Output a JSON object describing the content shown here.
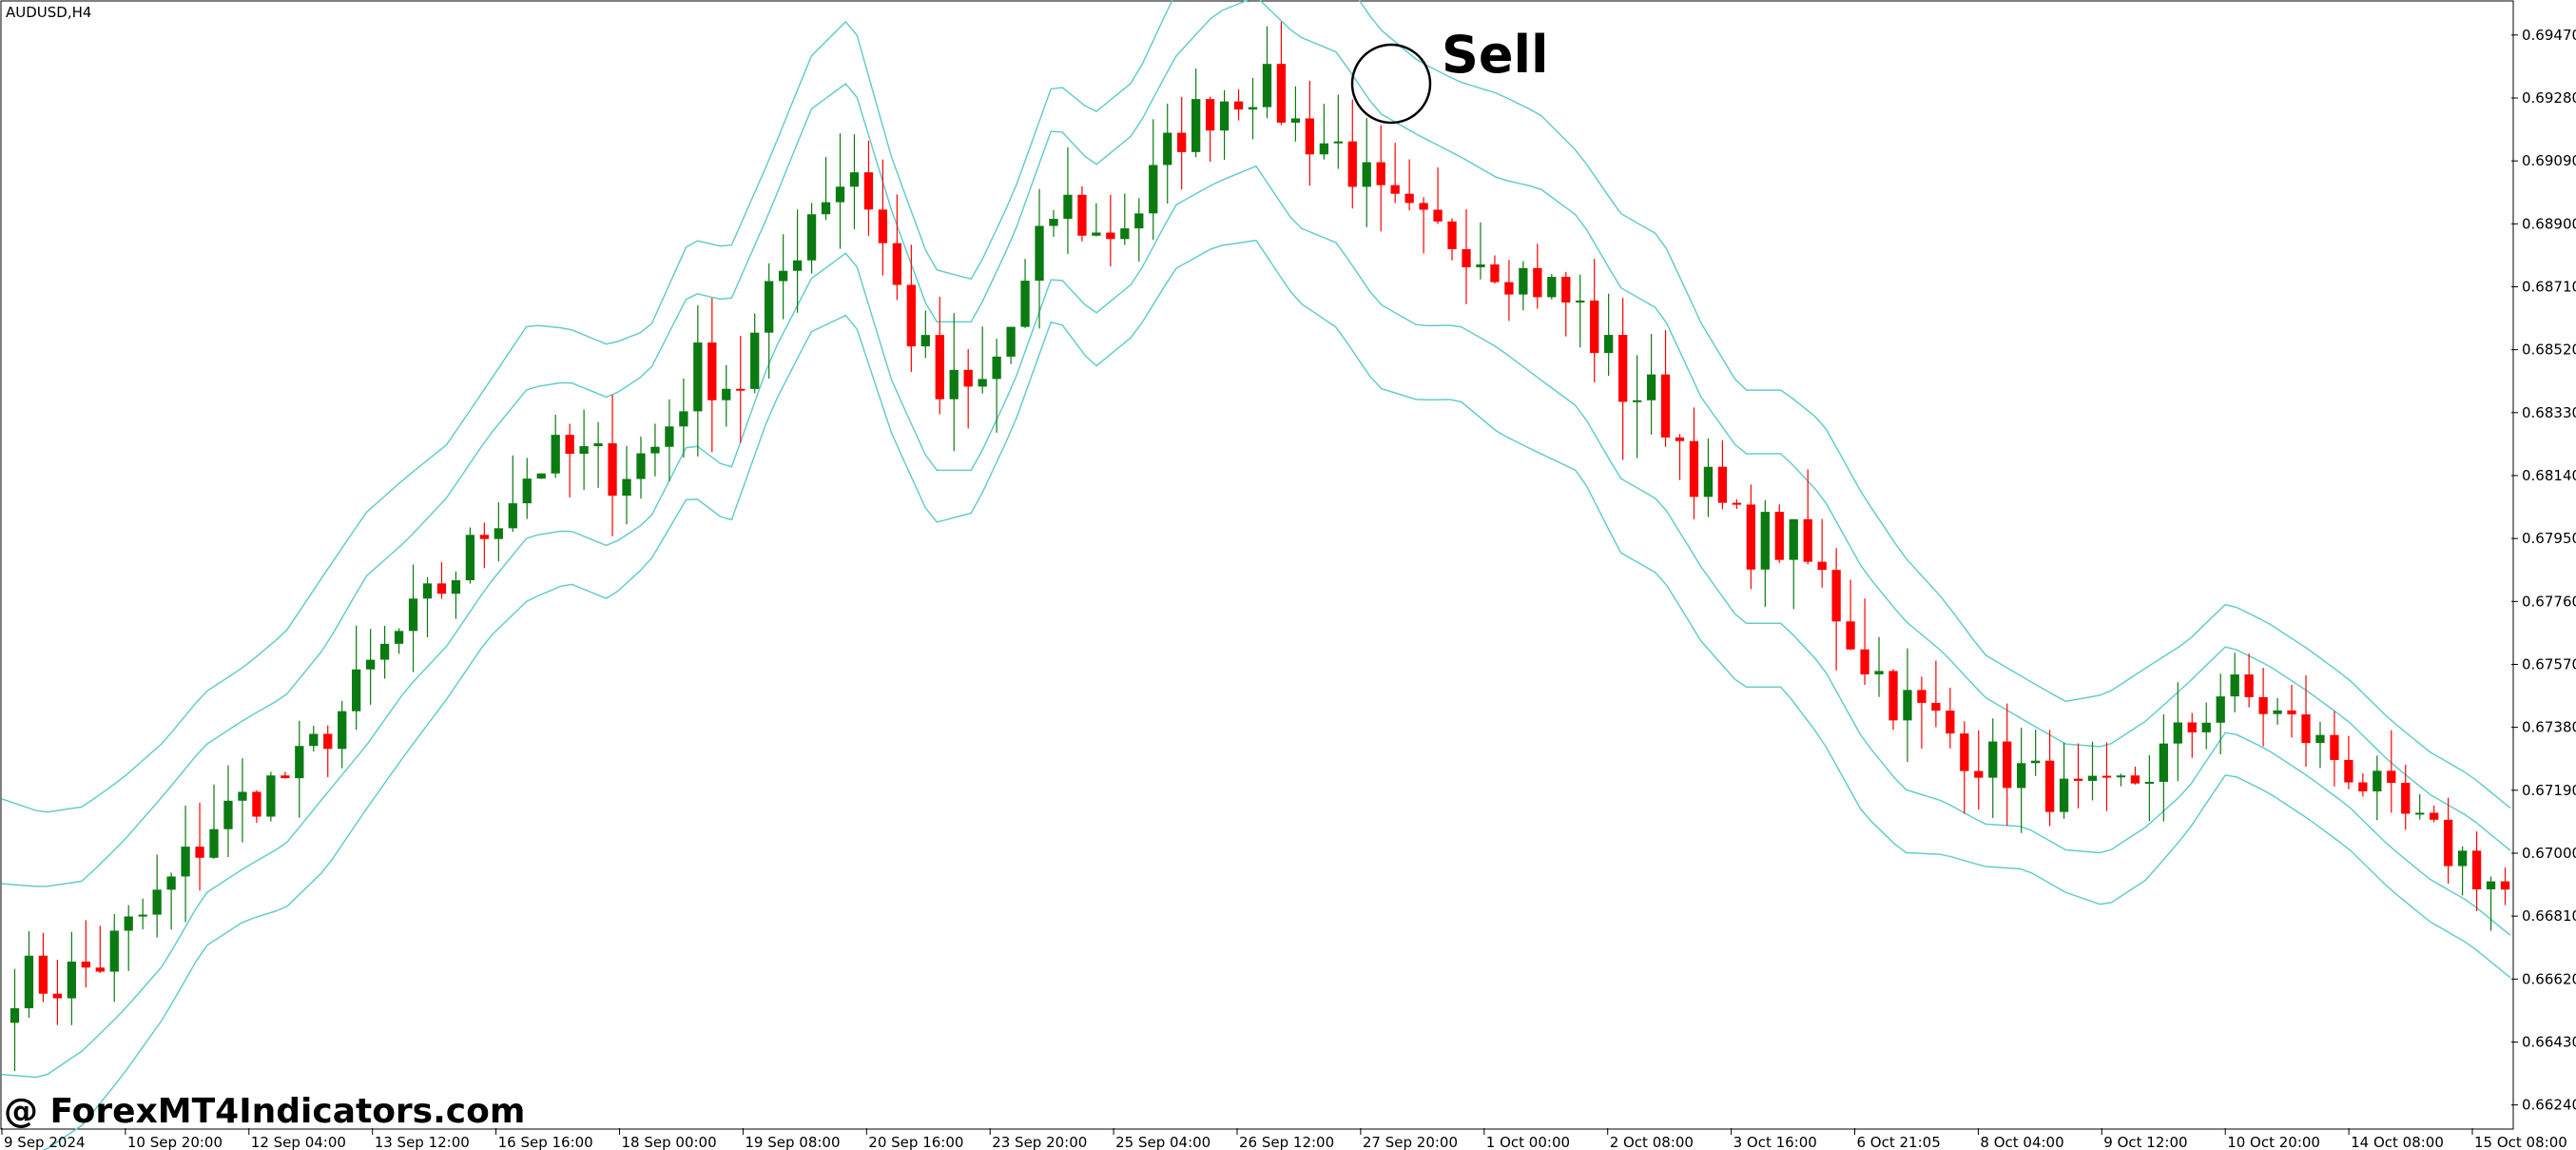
{
  "chart": {
    "symbol": "AUDUSD,H4",
    "annotation": "Sell",
    "watermark": "@ ForexMT4Indicators.com"
  },
  "colors": {
    "bull": "#0b7a12",
    "bear": "#ff0000",
    "band": "#66cccc",
    "axis": "#000000",
    "background": "#ffffff"
  },
  "chart_data": {
    "type": "candlestick",
    "y_ticks": [
      0.6947,
      0.6928,
      0.6909,
      0.689,
      0.6871,
      0.6852,
      0.6833,
      0.6814,
      0.6795,
      0.6776,
      0.6757,
      0.6738,
      0.6719,
      0.67,
      0.6681,
      0.6662,
      0.6643,
      0.6624
    ],
    "ylim": [
      0.6617,
      0.6957
    ],
    "x_labels": [
      "9 Sep 2024",
      "10 Sep 20:00",
      "12 Sep 04:00",
      "13 Sep 12:00",
      "16 Sep 16:00",
      "18 Sep 00:00",
      "19 Sep 08:00",
      "20 Sep 16:00",
      "23 Sep 20:00",
      "25 Sep 04:00",
      "26 Sep 12:00",
      "27 Sep 20:00",
      "1 Oct 00:00",
      "2 Oct 08:00",
      "3 Oct 16:00",
      "6 Oct 21:05",
      "8 Oct 04:00",
      "9 Oct 12:00",
      "10 Oct 20:00",
      "14 Oct 08:00",
      "15 Oct 08:00"
    ],
    "close_path": [
      0.6662,
      0.6661,
      0.6666,
      0.6678,
      0.6692,
      0.671,
      0.6718,
      0.6725,
      0.674,
      0.6758,
      0.6772,
      0.6785,
      0.6803,
      0.6818,
      0.682,
      0.6815,
      0.6823,
      0.6847,
      0.6841,
      0.6872,
      0.6899,
      0.6908,
      0.6868,
      0.6838,
      0.6838,
      0.6864,
      0.6898,
      0.6885,
      0.6895,
      0.6918,
      0.6928,
      0.6933,
      0.6918,
      0.6913,
      0.6895,
      0.6888,
      0.6885,
      0.6878,
      0.6872,
      0.6863,
      0.6842,
      0.6835,
      0.6812,
      0.6795,
      0.6795,
      0.6782,
      0.676,
      0.6745,
      0.6738,
      0.6728,
      0.6724,
      0.6717,
      0.6716,
      0.6724,
      0.6735,
      0.675,
      0.6744,
      0.6736,
      0.6727,
      0.6715,
      0.6705,
      0.6698,
      0.6688
    ],
    "volatility_path": [
      11,
      11,
      12,
      12,
      11,
      10,
      10,
      9,
      9,
      10,
      9,
      9,
      10,
      11,
      10,
      11,
      10,
      11,
      12,
      11,
      12,
      13,
      12,
      14,
      13,
      12,
      11,
      10,
      10,
      11,
      11,
      10,
      10,
      11,
      11,
      10,
      9,
      10,
      11,
      12,
      13,
      12,
      11,
      12,
      13,
      12,
      11,
      12,
      11,
      10,
      10,
      9,
      9,
      10,
      10,
      9,
      9,
      9,
      9,
      10,
      10,
      10,
      11
    ],
    "bands": [
      {
        "name": "",
        "offsets": [
          17,
          16,
          15,
          14,
          13,
          12,
          12,
          13,
          14,
          14,
          13,
          12,
          12,
          13,
          12,
          12,
          11,
          12,
          13,
          12,
          13,
          14,
          13,
          12,
          11,
          11,
          11,
          12,
          12,
          13,
          14,
          15,
          16,
          17,
          17,
          16,
          15,
          16,
          16,
          15,
          16,
          16,
          15,
          14,
          14,
          15,
          15,
          14,
          12,
          10,
          9,
          9,
          10,
          10,
          9,
          8,
          8,
          8,
          8,
          8,
          8,
          8,
          8
        ]
      },
      {
        "name": "",
        "offsets": [
          9,
          9,
          8,
          8,
          8,
          7,
          7,
          7,
          7,
          8,
          7,
          7,
          7,
          7,
          7,
          7,
          7,
          7,
          8,
          7,
          8,
          8,
          8,
          7,
          7,
          7,
          7,
          7,
          7,
          7,
          8,
          8,
          9,
          9,
          9,
          9,
          8,
          8,
          9,
          9,
          9,
          9,
          8,
          8,
          8,
          8,
          8,
          8,
          7,
          6,
          5,
          5,
          5,
          5,
          5,
          4,
          4,
          4,
          4,
          4,
          4,
          4,
          4
        ]
      },
      {
        "name": "",
        "offsets": [
          -9,
          -9,
          -8,
          -8,
          -8,
          -7,
          -7,
          -7,
          -7,
          -8,
          -7,
          -7,
          -7,
          -7,
          -7,
          -7,
          -7,
          -7,
          -8,
          -7,
          -8,
          -8,
          -8,
          -7,
          -7,
          -7,
          -7,
          -7,
          -7,
          -7,
          -8,
          -8,
          -9,
          -9,
          -9,
          -9,
          -8,
          -8,
          -9,
          -9,
          -9,
          -9,
          -8,
          -8,
          -8,
          -8,
          -8,
          -8,
          -7,
          -6,
          -5,
          -5,
          -5,
          -5,
          -5,
          -4,
          -4,
          -4,
          -4,
          -4,
          -4,
          -4,
          -4
        ]
      },
      {
        "name": "",
        "offsets": [
          -17,
          -16,
          -15,
          -14,
          -13,
          -12,
          -12,
          -13,
          -14,
          -14,
          -13,
          -12,
          -12,
          -13,
          -12,
          -12,
          -11,
          -12,
          -13,
          -12,
          -13,
          -14,
          -13,
          -12,
          -11,
          -11,
          -11,
          -12,
          -12,
          -13,
          -14,
          -15,
          -16,
          -17,
          -17,
          -16,
          -15,
          -16,
          -16,
          -15,
          -16,
          -16,
          -15,
          -14,
          -14,
          -15,
          -15,
          -14,
          -12,
          -10,
          -9,
          -9,
          -10,
          -10,
          -9,
          -8,
          -8,
          -8,
          -8,
          -8,
          -8,
          -8,
          -8
        ]
      }
    ],
    "candle_count": 176,
    "sell_candle_index": 95
  }
}
